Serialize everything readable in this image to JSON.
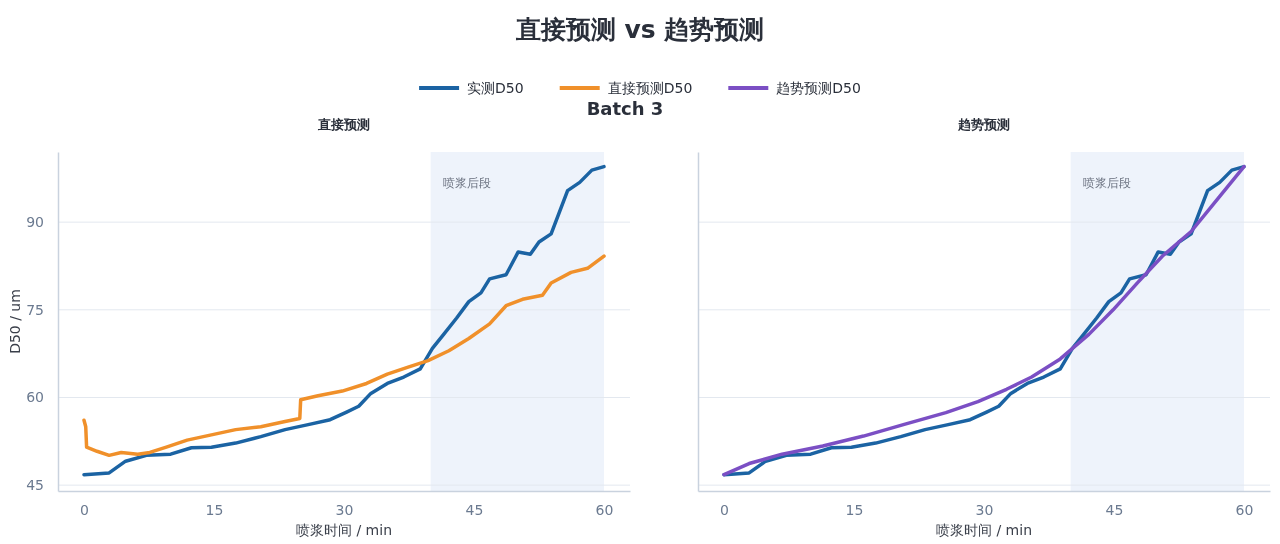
{
  "chart_data": [
    {
      "type": "line",
      "title": "直接预测 vs 趋势预测",
      "subtitle": "Batch 3",
      "annotations": [
        "直接预测"
      ],
      "xlabel": "喷浆时间 / min",
      "ylabel": "D50 / um",
      "xlim": [
        -3,
        63
      ],
      "xticks": [
        0,
        15,
        30,
        45,
        60
      ],
      "ylim": [
        44,
        102
      ],
      "yticks": [
        45,
        60,
        75,
        90
      ],
      "grid": "y",
      "legend": "top",
      "marker": "none",
      "line_style": "solid",
      "bands": [
        {
          "axis": "x",
          "from": 40,
          "to": 60,
          "label": "喷浆后段",
          "color": "#eef3fb"
        }
      ],
      "series": [
        {
          "name": "实测D50",
          "color": "#1b63a3",
          "x": [
            0,
            2.9,
            4.8,
            7.2,
            10,
            12.4,
            14.7,
            17.5,
            20.4,
            23.2,
            26,
            28.4,
            30.3,
            31.7,
            33.1,
            35,
            36.9,
            38.8,
            40.2,
            41.5,
            43,
            44.4,
            45.8,
            46.8,
            48.7,
            50.1,
            51.5,
            52.5,
            53.9,
            54.8,
            55.8,
            57.2,
            58.6,
            60
          ],
          "values": [
            46.8,
            47.1,
            49.1,
            50.1,
            50.3,
            51.4,
            51.5,
            52.2,
            53.3,
            54.5,
            55.4,
            56.2,
            57.5,
            58.5,
            60.7,
            62.4,
            63.5,
            64.9,
            68.4,
            70.8,
            73.6,
            76.4,
            77.9,
            80.3,
            81,
            84.9,
            84.5,
            86.6,
            88,
            91.5,
            95.4,
            96.8,
            98.9,
            99.5
          ]
        },
        {
          "name": "直接预测D50",
          "color": "#f0902a",
          "x": [
            0,
            0.2,
            0.3,
            1.5,
            2.9,
            4.3,
            6.2,
            7.6,
            9.5,
            11.9,
            14.7,
            17.5,
            20.4,
            23.2,
            24.9,
            25,
            27,
            29.8,
            32.6,
            35,
            37.4,
            39.7,
            42.1,
            44.4,
            46.8,
            48.7,
            50.6,
            52.9,
            53.9,
            56.2,
            58.1,
            60
          ],
          "values": [
            56.1,
            55,
            51.5,
            50.8,
            50.1,
            50.6,
            50.3,
            50.6,
            51.5,
            52.7,
            53.6,
            54.5,
            55,
            55.9,
            56.4,
            59.6,
            60.3,
            61.1,
            62.4,
            64,
            65.2,
            66.3,
            68,
            70.1,
            72.6,
            75.7,
            76.8,
            77.5,
            79.6,
            81.4,
            82.1,
            84.2
          ]
        }
      ]
    },
    {
      "type": "line",
      "title": "趋势预测",
      "xlabel": "喷浆时间 / min",
      "xlim": [
        -3,
        63
      ],
      "xticks": [
        0,
        15,
        30,
        45,
        60
      ],
      "ylim": [
        44,
        102
      ],
      "yticks": [
        45,
        60,
        75,
        90
      ],
      "tick_labels": "x",
      "grid": "y",
      "legend": "top",
      "marker": "none",
      "line_style": "solid",
      "bands": [
        {
          "axis": "x",
          "from": 40,
          "to": 60,
          "label": "喷浆后段",
          "color": "#eef3fb"
        }
      ],
      "series": [
        {
          "color": "#1b63a3",
          "x": [
            0,
            2.9,
            4.8,
            7.2,
            10,
            12.4,
            14.7,
            17.5,
            20.4,
            23.2,
            26,
            28.4,
            30.3,
            31.7,
            33.1,
            35,
            36.9,
            38.8,
            40.2,
            41.5,
            43,
            44.4,
            45.8,
            46.8,
            48.7,
            50.1,
            51.5,
            52.5,
            53.9,
            54.8,
            55.8,
            57.2,
            58.6,
            60
          ],
          "values": [
            46.8,
            47.1,
            49.1,
            50.1,
            50.3,
            51.4,
            51.5,
            52.2,
            53.3,
            54.5,
            55.4,
            56.2,
            57.5,
            58.5,
            60.7,
            62.4,
            63.5,
            64.9,
            68.4,
            70.8,
            73.6,
            76.4,
            77.9,
            80.3,
            81,
            84.9,
            84.5,
            86.6,
            88,
            91.5,
            95.4,
            96.8,
            98.9,
            99.5
          ]
        },
        {
          "name": "趋势预测D50",
          "color": "#7b4fc4",
          "x": [
            0,
            2.9,
            6.7,
            11.4,
            16.1,
            20.8,
            25.6,
            29.3,
            32.6,
            35.5,
            38.8,
            42.1,
            44.9,
            47.7,
            50.6,
            53.9,
            57.2,
            60
          ],
          "values": [
            46.8,
            48.7,
            50.3,
            51.7,
            53.4,
            55.4,
            57.4,
            59.3,
            61.4,
            63.5,
            66.6,
            70.8,
            75,
            79.6,
            84.2,
            88.4,
            94.4,
            99.5
          ]
        }
      ]
    }
  ]
}
